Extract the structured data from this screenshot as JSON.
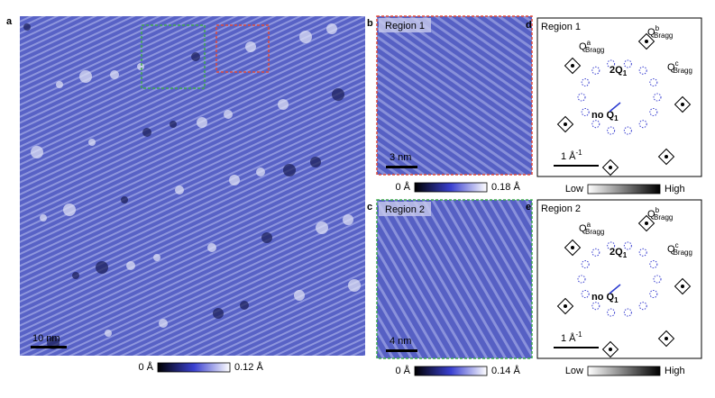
{
  "panels": [
    {
      "label": "a",
      "scale_bar": "10 nm",
      "colorbar": {
        "min": "0 Å",
        "max": "0.12 Å"
      }
    },
    {
      "label": "b",
      "region": "Region 1",
      "scale_bar": "3 nm",
      "colorbar": {
        "min": "0 Å",
        "max": "0.18 Å"
      }
    },
    {
      "label": "c",
      "region": "Region 2",
      "scale_bar": "4 nm",
      "colorbar": {
        "min": "0 Å",
        "max": "0.14 Å"
      }
    },
    {
      "label": "d",
      "region": "Region 1",
      "peaks": [
        {
          "base": "Q",
          "sup": "a",
          "sub": "Bragg"
        },
        {
          "base": "Q",
          "sup": "b",
          "sub": "Bragg"
        },
        {
          "base": "Q",
          "sup": "c",
          "sub": "Bragg"
        }
      ],
      "two_q1": {
        "base": "2Q",
        "sub": "1"
      },
      "no_q1": {
        "base": "no Q",
        "sub": "1"
      },
      "scale_bar": {
        "base": "1 Å",
        "sup": "-1"
      },
      "colorbar": {
        "min": "Low",
        "max": "High"
      }
    },
    {
      "label": "e",
      "region": "Region 2",
      "peaks": [
        {
          "base": "Q",
          "sup": "a",
          "sub": "Bragg"
        },
        {
          "base": "Q",
          "sup": "b",
          "sub": "Bragg"
        },
        {
          "base": "Q",
          "sup": "c",
          "sub": "Bragg"
        }
      ],
      "two_q1": {
        "base": "2Q",
        "sub": "1"
      },
      "no_q1": {
        "base": "no Q",
        "sub": "1"
      },
      "scale_bar": {
        "base": "1 Å",
        "sup": "-1"
      },
      "colorbar": {
        "min": "Low",
        "max": "High"
      }
    }
  ]
}
